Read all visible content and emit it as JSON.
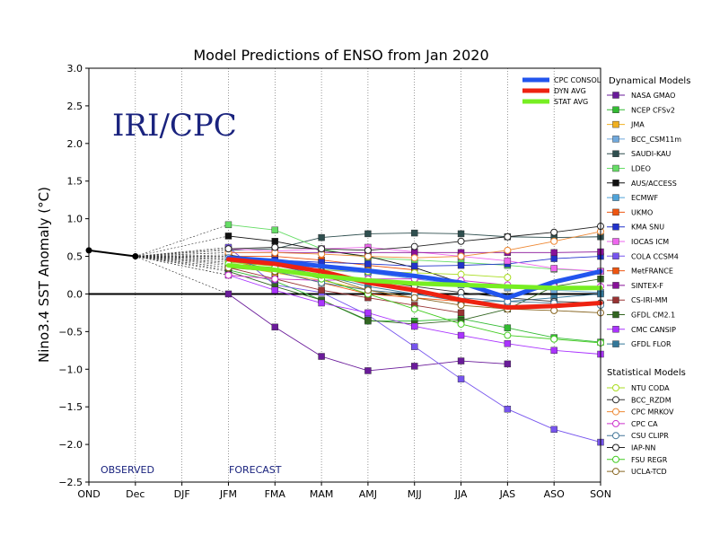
{
  "chart_data": {
    "type": "line",
    "title": "Model Predictions of ENSO from Jan 2020",
    "ylabel": "Nino3.4 SST Anomaly (°C)",
    "xlabel": "",
    "watermark": "IRI/CPC",
    "categories": [
      "OND",
      "Dec",
      "DJF",
      "JFM",
      "FMA",
      "MAM",
      "AMJ",
      "MJJ",
      "JJA",
      "JAS",
      "ASO",
      "SON"
    ],
    "ylim": [
      -2.5,
      3.0
    ],
    "yticks": [
      "3.0",
      "2.5",
      "2.0",
      "1.5",
      "1.0",
      "0.5",
      "0.0",
      "−0.5",
      "−1.0",
      "−1.5",
      "−2.0",
      "−2.5"
    ],
    "ytick_values": [
      3.0,
      2.5,
      2.0,
      1.5,
      1.0,
      0.5,
      0.0,
      -0.5,
      -1.0,
      -1.5,
      -2.0,
      -2.5
    ],
    "grid": "vertical dotted",
    "zero_line": true,
    "annotations": {
      "observed": "OBSERVED",
      "forecast": "FORECAST"
    },
    "observed": {
      "categories": [
        "OND",
        "Dec"
      ],
      "values": [
        0.58,
        0.5
      ],
      "color": "#000000"
    },
    "consensus_legend": [
      {
        "name": "CPC CONSOL",
        "color": "#2255ee"
      },
      {
        "name": "DYN AVG",
        "color": "#ee2211"
      },
      {
        "name": "STAT AVG",
        "color": "#77ee22"
      }
    ],
    "consensus": [
      {
        "name": "CPC CONSOL",
        "color": "#2255ee",
        "values": [
          0.48,
          0.44,
          0.37,
          0.31,
          0.24,
          0.15,
          -0.05,
          0.16,
          0.3
        ]
      },
      {
        "name": "DYN AVG",
        "color": "#ee2211",
        "values": [
          0.46,
          0.4,
          0.3,
          0.15,
          0.05,
          -0.08,
          -0.18,
          -0.16,
          -0.12
        ]
      },
      {
        "name": "STAT AVG",
        "color": "#77ee22",
        "values": [
          0.38,
          0.32,
          0.24,
          0.18,
          0.14,
          0.12,
          0.1,
          0.08,
          0.08
        ]
      }
    ],
    "legend_groups": {
      "dynamical": "Dynamical Models",
      "statistical": "Statistical Models"
    },
    "dynamical": [
      {
        "name": "NASA GMAO",
        "color": "#6a1b9a",
        "values": [
          0.0,
          -0.44,
          -0.83,
          -1.02,
          -0.96,
          -0.89,
          -0.93
        ]
      },
      {
        "name": "NCEP CFSv2",
        "color": "#33bb33",
        "values": [
          0.32,
          0.17,
          -0.08,
          -0.36,
          -0.36,
          -0.33,
          -0.45,
          -0.58,
          -0.64
        ]
      },
      {
        "name": "JMA",
        "color": "#f0b020",
        "values": [
          0.38,
          0.28,
          0.18,
          0.05,
          -0.05
        ]
      },
      {
        "name": "BCC_CSM11m",
        "color": "#6fa8dc",
        "values": [
          0.45,
          0.4,
          0.32,
          0.28,
          0.2,
          0.12,
          0.08,
          0.05,
          0.02
        ]
      },
      {
        "name": "SAUDI-KAU",
        "color": "#2f4f4f",
        "values": [
          0.58,
          0.6,
          0.75,
          0.8,
          0.81,
          0.8,
          0.76,
          0.75,
          0.76
        ]
      },
      {
        "name": "LDEO",
        "color": "#66dd66",
        "values": [
          0.92,
          0.85,
          0.6,
          0.48,
          0.45,
          0.42,
          0.38,
          0.33,
          0.3
        ]
      },
      {
        "name": "AUS/ACCESS",
        "color": "#111111",
        "values": [
          0.77,
          0.7,
          0.58,
          0.5,
          0.35,
          0.15
        ]
      },
      {
        "name": "ECMWF",
        "color": "#4fa3d9",
        "values": [
          0.47,
          0.4,
          0.35,
          0.3,
          0.22
        ]
      },
      {
        "name": "UKMO",
        "color": "#ee5511",
        "values": [
          0.5,
          0.5,
          0.45,
          0.38,
          0.32
        ]
      },
      {
        "name": "KMA SNU",
        "color": "#2233cc",
        "values": [
          0.5,
          0.45,
          0.42,
          0.4,
          0.37,
          0.38,
          0.4,
          0.47,
          0.5
        ]
      },
      {
        "name": "IOCAS ICM",
        "color": "#ee66ee",
        "values": [
          0.6,
          0.57,
          0.6,
          0.62,
          0.56,
          0.5,
          0.44,
          0.34,
          0.3
        ]
      },
      {
        "name": "COLA CCSM4",
        "color": "#7755ee",
        "values": [
          0.62,
          0.12,
          0.02,
          -0.28,
          -0.7,
          -1.13,
          -1.53,
          -1.8,
          -1.97
        ]
      },
      {
        "name": "MetFRANCE",
        "color": "#ee5511",
        "values": [
          0.45,
          0.3,
          0.15,
          0.0,
          -0.05,
          -0.1
        ]
      },
      {
        "name": "SINTEX-F",
        "color": "#881199",
        "values": [
          0.55,
          0.55,
          0.55,
          0.55,
          0.55,
          0.55,
          0.55,
          0.55,
          0.56
        ]
      },
      {
        "name": "CS-IRI-MM",
        "color": "#993333",
        "values": [
          0.35,
          0.2,
          0.05,
          -0.05,
          -0.15,
          -0.25
        ]
      },
      {
        "name": "GFDL CM2.1",
        "color": "#336622",
        "values": [
          0.3,
          0.1,
          -0.08,
          -0.35,
          -0.4,
          -0.35,
          -0.2,
          0.1,
          0.2
        ]
      },
      {
        "name": "CMC CANSIP",
        "color": "#aa33ff",
        "values": [
          0.25,
          0.05,
          -0.12,
          -0.25,
          -0.43,
          -0.55,
          -0.66,
          -0.75,
          -0.8
        ]
      },
      {
        "name": "GFDL FLOR",
        "color": "#337799",
        "values": [
          0.42,
          0.38,
          0.25,
          0.1,
          0.0,
          -0.1,
          -0.1,
          -0.05,
          0.0
        ]
      }
    ],
    "statistical": [
      {
        "name": "NTU CODA",
        "color": "#aadd22",
        "values": [
          0.42,
          0.37,
          0.32,
          0.3,
          0.28,
          0.26,
          0.22
        ]
      },
      {
        "name": "BCC_RZDM",
        "color": "#333333",
        "values": [
          0.52,
          0.42,
          0.3,
          0.18,
          0.1,
          0.02,
          -0.05,
          -0.1,
          -0.12
        ]
      },
      {
        "name": "CPC MRKOV",
        "color": "#ee8833",
        "values": [
          0.55,
          0.55,
          0.53,
          0.5,
          0.48,
          0.5,
          0.58,
          0.7,
          0.83
        ]
      },
      {
        "name": "CPC CA",
        "color": "#cc33cc",
        "values": [
          0.25,
          0.2,
          0.18,
          0.2,
          0.2,
          0.18,
          0.12,
          0.1,
          0.1
        ]
      },
      {
        "name": "CSU CLIPR",
        "color": "#447799",
        "values": [
          0.48,
          0.3,
          0.15,
          0.05,
          0.0,
          -0.05,
          -0.1,
          -0.12,
          -0.15
        ]
      },
      {
        "name": "IAP-NN",
        "color": "#222222",
        "values": [
          0.6,
          0.62,
          0.6,
          0.58,
          0.63,
          0.7,
          0.76,
          0.82,
          0.9
        ]
      },
      {
        "name": "FSU REGR",
        "color": "#44cc22",
        "values": [
          0.4,
          0.35,
          0.2,
          0.0,
          -0.2,
          -0.4,
          -0.55,
          -0.6,
          -0.65
        ]
      },
      {
        "name": "UCLA-TCD",
        "color": "#886622",
        "values": [
          0.35,
          0.3,
          0.25,
          0.05,
          -0.05,
          -0.15,
          -0.2,
          -0.22,
          -0.25
        ]
      }
    ]
  }
}
